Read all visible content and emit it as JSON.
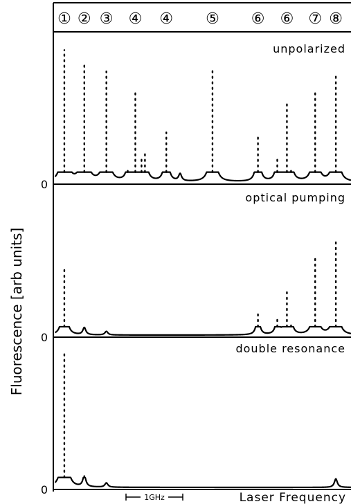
{
  "chart_data": {
    "type": "line",
    "ylabel": "Fluorescence [arb units]",
    "xlabel": "Laser Frequency",
    "scale_label": "1GHz",
    "x_range": [
      0,
      430
    ],
    "peak_markers": [
      {
        "label": "①",
        "x": 14
      },
      {
        "label": "②",
        "x": 43
      },
      {
        "label": "③",
        "x": 75
      },
      {
        "label": "④",
        "x": 117
      },
      {
        "label": "④",
        "x": 162
      },
      {
        "label": "⑤",
        "x": 229
      },
      {
        "label": "⑥",
        "x": 295
      },
      {
        "label": "⑥",
        "x": 337
      },
      {
        "label": "⑦",
        "x": 378
      },
      {
        "label": "⑧",
        "x": 408
      }
    ],
    "panels": [
      {
        "label": "unpolarized",
        "zero_label": "0",
        "ylim": [
          0,
          1
        ],
        "peaks": [
          {
            "x": 14,
            "h": 0.93
          },
          {
            "x": 43,
            "h": 0.85
          },
          {
            "x": 75,
            "h": 0.78
          },
          {
            "x": 106,
            "h": 0.09
          },
          {
            "x": 117,
            "h": 0.63
          },
          {
            "x": 126,
            "h": 0.18
          },
          {
            "x": 131,
            "h": 0.22
          },
          {
            "x": 162,
            "h": 0.35
          },
          {
            "x": 182,
            "h": 0.05
          },
          {
            "x": 229,
            "h": 0.8
          },
          {
            "x": 295,
            "h": 0.34
          },
          {
            "x": 323,
            "h": 0.18
          },
          {
            "x": 337,
            "h": 0.55
          },
          {
            "x": 343,
            "h": 0.1
          },
          {
            "x": 378,
            "h": 0.65
          },
          {
            "x": 408,
            "h": 0.77
          }
        ]
      },
      {
        "label": "optical pumping",
        "zero_label": "0",
        "ylim": [
          0,
          1
        ],
        "peaks": [
          {
            "x": 14,
            "h": 0.58
          },
          {
            "x": 43,
            "h": 0.06
          },
          {
            "x": 75,
            "h": 0.03
          },
          {
            "x": 295,
            "h": 0.19
          },
          {
            "x": 323,
            "h": 0.16
          },
          {
            "x": 337,
            "h": 0.36
          },
          {
            "x": 343,
            "h": 0.1
          },
          {
            "x": 378,
            "h": 0.65
          },
          {
            "x": 408,
            "h": 0.78
          }
        ]
      },
      {
        "label": "double resonance",
        "zero_label": "0",
        "ylim": [
          0,
          1
        ],
        "peaks": [
          {
            "x": 14,
            "h": 0.94
          },
          {
            "x": 43,
            "h": 0.08
          },
          {
            "x": 75,
            "h": 0.03
          },
          {
            "x": 408,
            "h": 0.06
          }
        ]
      }
    ]
  }
}
